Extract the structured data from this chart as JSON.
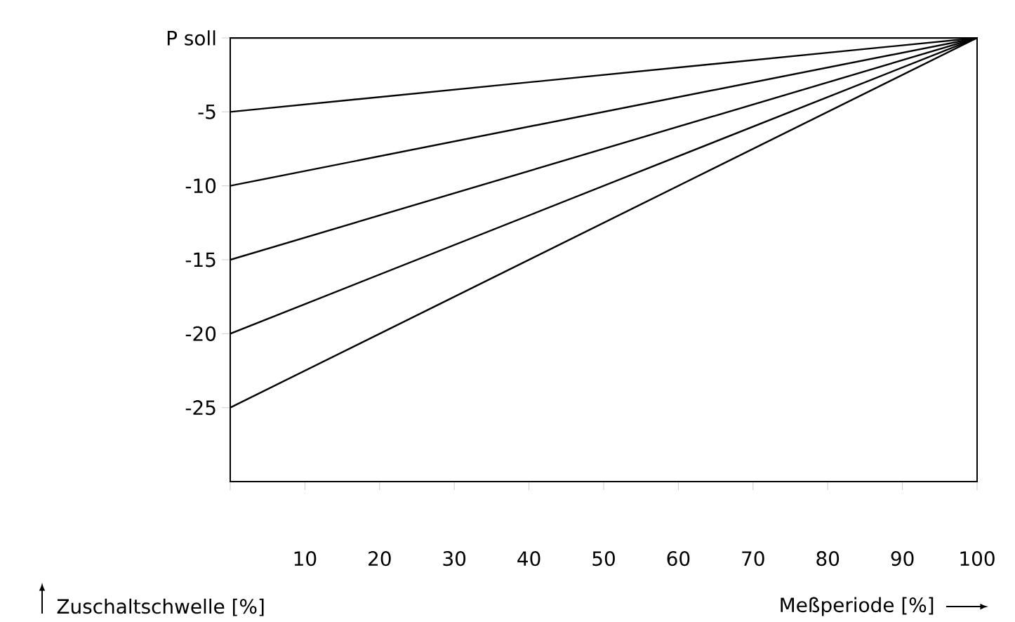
{
  "chart_data": {
    "type": "line",
    "xlabel": "Meßperiode [%]",
    "ylabel": "Zuschaltschwelle [%]",
    "x": [
      0,
      100
    ],
    "series": [
      {
        "color": "#000000",
        "values": [
          0,
          0
        ]
      },
      {
        "color": "#000000",
        "values": [
          -5,
          0
        ]
      },
      {
        "color": "#000000",
        "values": [
          -10,
          0
        ]
      },
      {
        "color": "#000000",
        "values": [
          -15,
          0
        ]
      },
      {
        "color": "#000000",
        "values": [
          -20,
          0
        ]
      },
      {
        "color": "#000000",
        "values": [
          -25,
          0
        ]
      }
    ],
    "xlim": [
      0,
      100
    ],
    "ylim": [
      -30,
      0
    ],
    "xticks": [
      {
        "value": 0,
        "label": null
      },
      10,
      20,
      30,
      40,
      50,
      60,
      70,
      80,
      90,
      100
    ],
    "yticks": [
      -25,
      -20,
      -15,
      -10,
      -5,
      {
        "value": 0,
        "label": "P soll"
      }
    ],
    "grid": false,
    "legend": false,
    "marker": "none",
    "line_style": "solid"
  }
}
